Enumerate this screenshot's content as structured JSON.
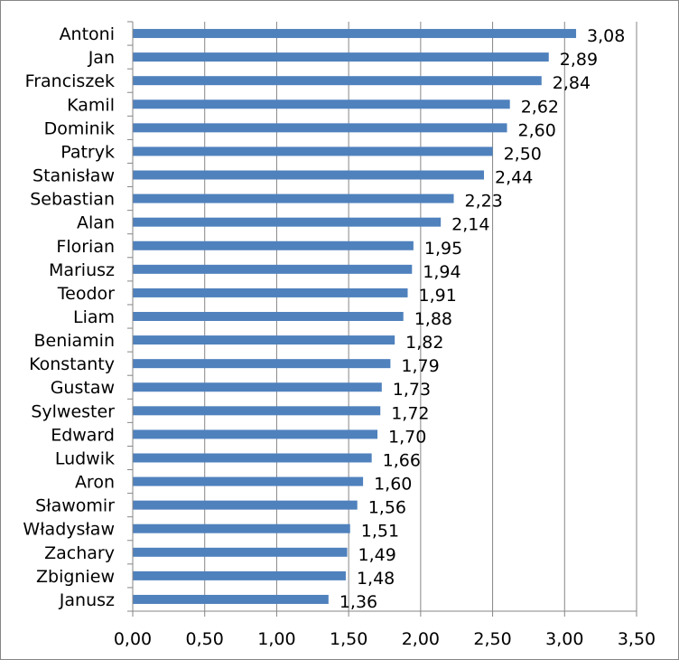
{
  "chart_data": {
    "type": "bar",
    "orientation": "horizontal",
    "categories": [
      "Antoni",
      "Jan",
      "Franciszek",
      "Kamil",
      "Dominik",
      "Patryk",
      "Stanisław",
      "Sebastian",
      "Alan",
      "Florian",
      "Mariusz",
      "Teodor",
      "Liam",
      "Beniamin",
      "Konstanty",
      "Gustaw",
      "Sylwester",
      "Edward",
      "Ludwik",
      "Aron",
      "Sławomir",
      "Władysław",
      "Zachary",
      "Zbigniew",
      "Janusz"
    ],
    "values": [
      3.08,
      2.89,
      2.84,
      2.62,
      2.6,
      2.5,
      2.44,
      2.23,
      2.14,
      1.95,
      1.94,
      1.91,
      1.88,
      1.82,
      1.79,
      1.73,
      1.72,
      1.7,
      1.66,
      1.6,
      1.56,
      1.51,
      1.49,
      1.48,
      1.36
    ],
    "value_labels": [
      "3,08",
      "2,89",
      "2,84",
      "2,62",
      "2,60",
      "2,50",
      "2,44",
      "2,23",
      "2,14",
      "1,95",
      "1,94",
      "1,91",
      "1,88",
      "1,82",
      "1,79",
      "1,73",
      "1,72",
      "1,70",
      "1,66",
      "1,60",
      "1,56",
      "1,51",
      "1,49",
      "1,48",
      "1,36"
    ],
    "x_ticks": [
      0,
      0.5,
      1.0,
      1.5,
      2.0,
      2.5,
      3.0,
      3.5
    ],
    "x_tick_labels": [
      "0,00",
      "0,50",
      "1,00",
      "1,50",
      "2,00",
      "2,50",
      "3,00",
      "3,50"
    ],
    "xlim": [
      0,
      3.5
    ],
    "grid": "vertical",
    "legend": "none",
    "title": "",
    "xlabel": "",
    "ylabel": "",
    "colors": {
      "bar": "#4F81BD",
      "grid": "#868686",
      "axis": "#868686",
      "text": "#000000"
    }
  }
}
